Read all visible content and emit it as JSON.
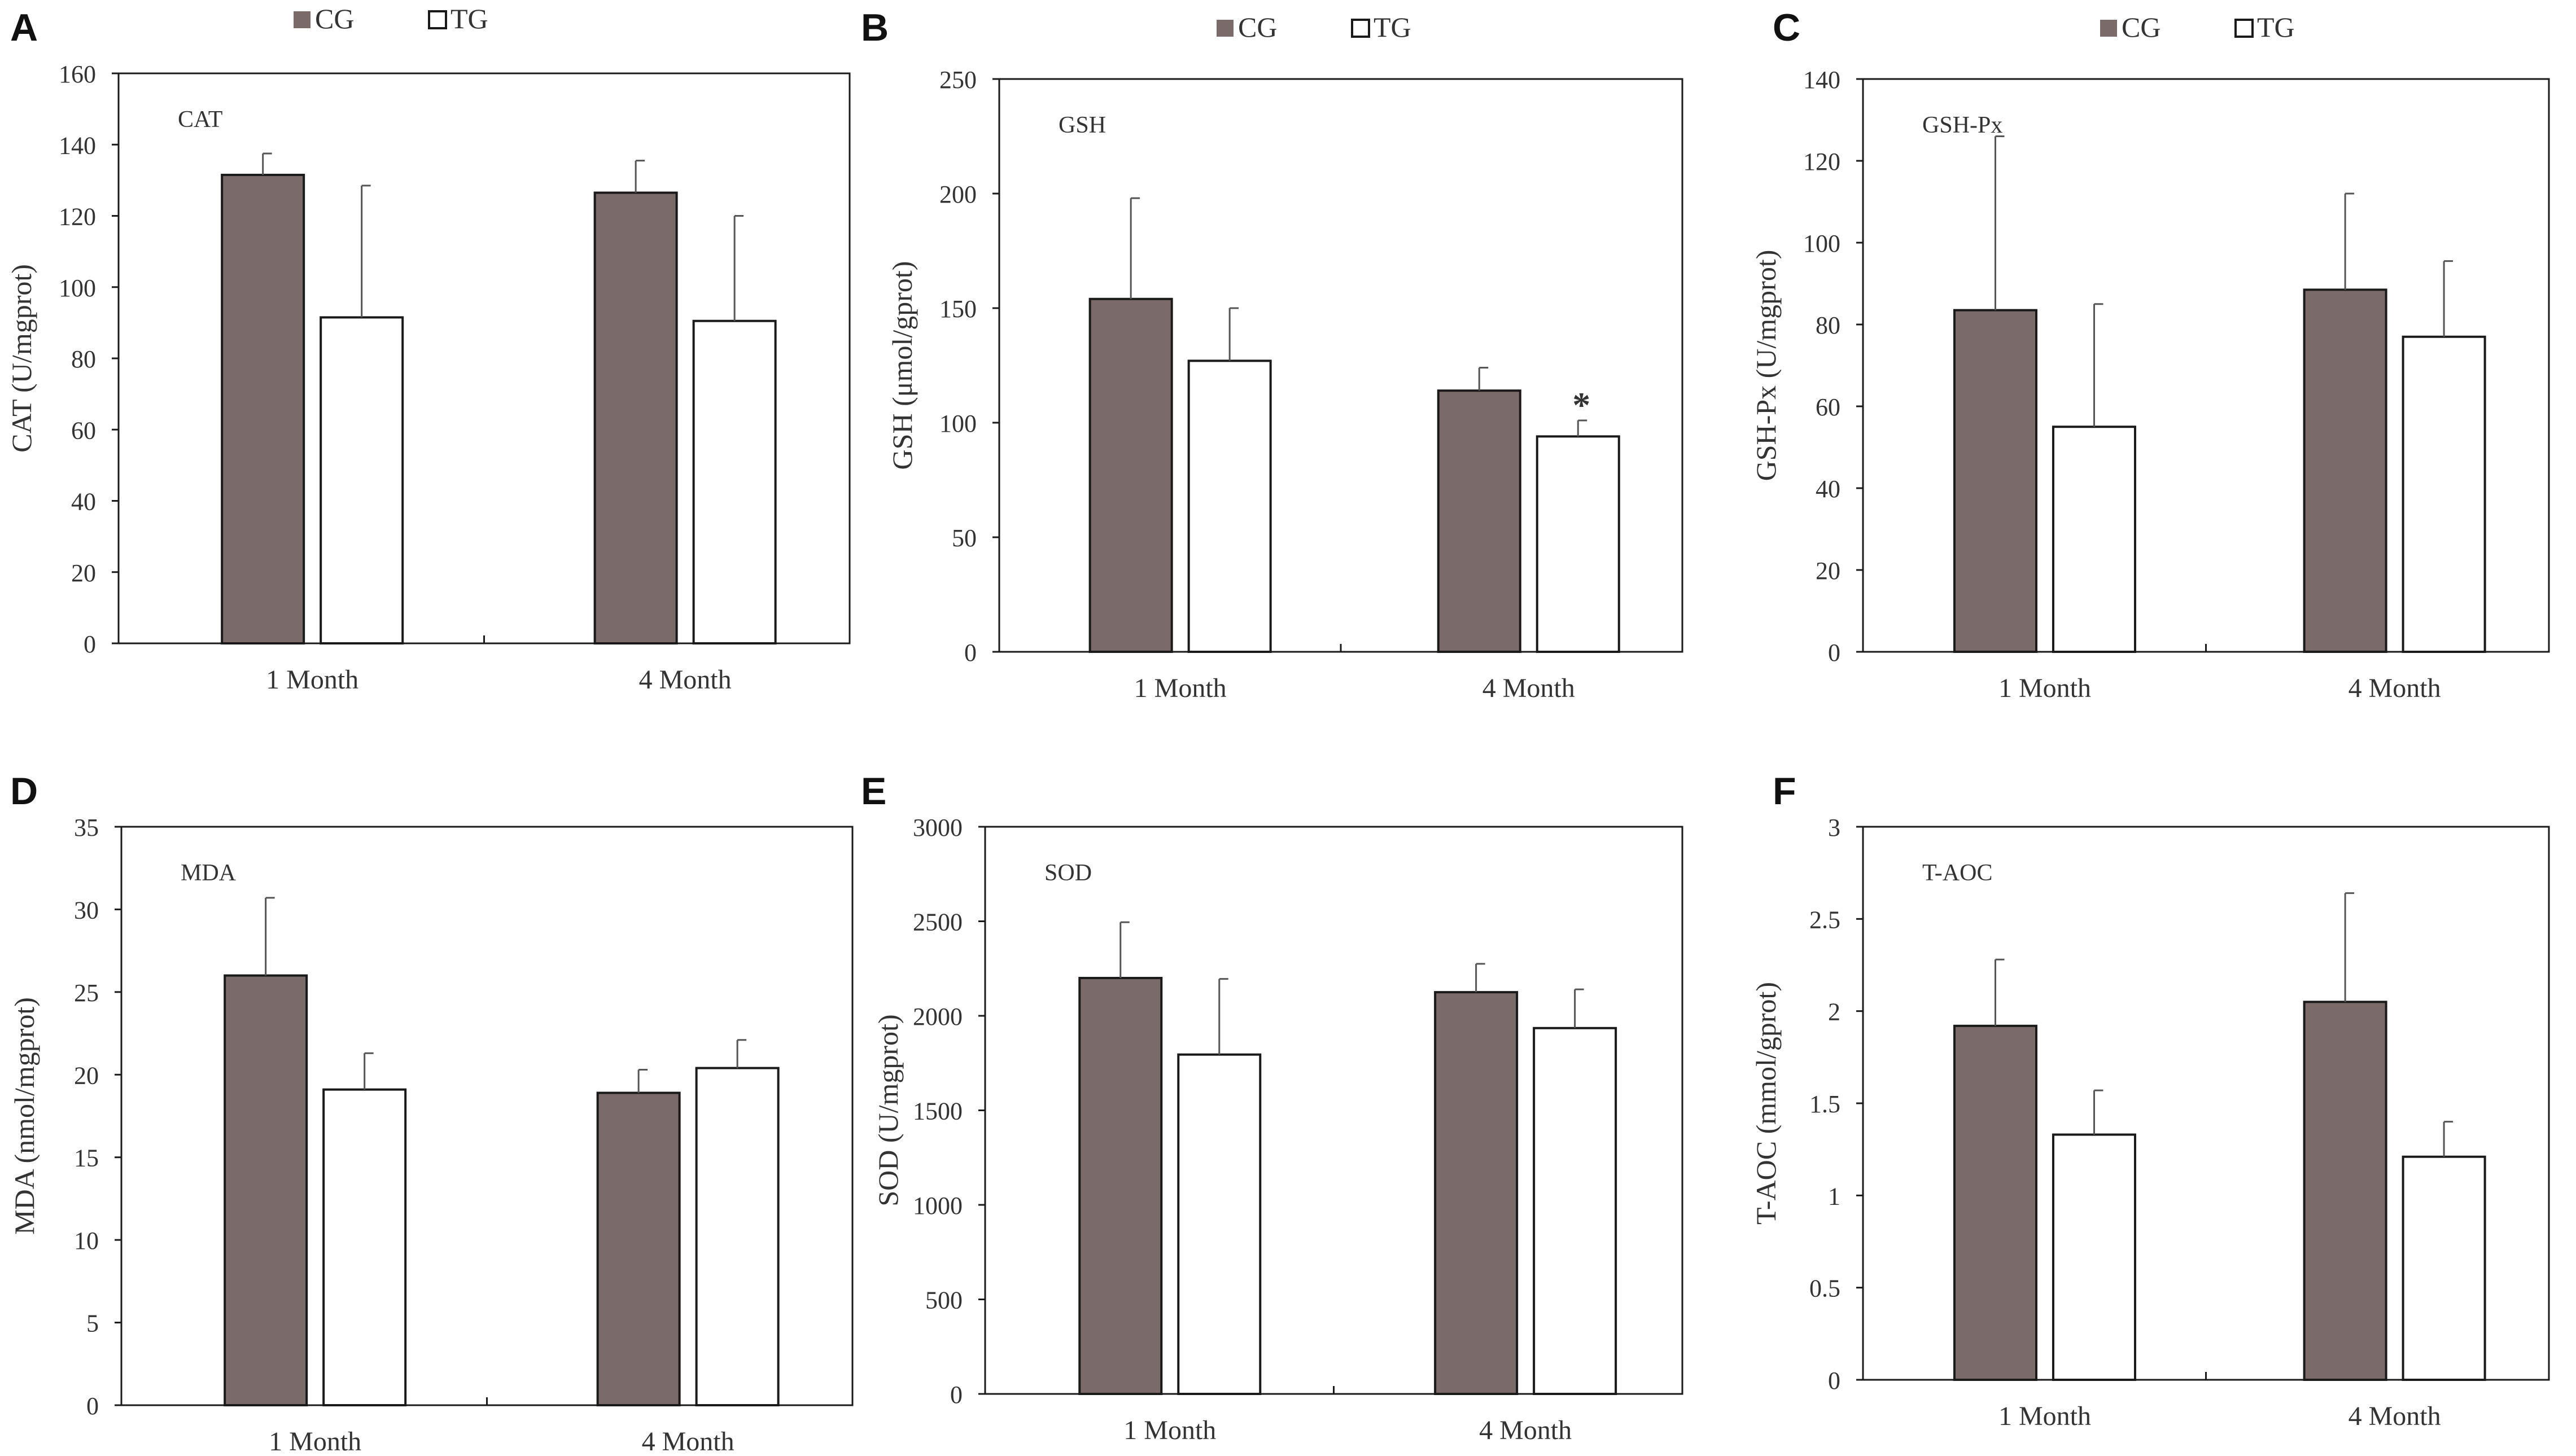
{
  "colors": {
    "cg": "#7a6a69",
    "tg": "#ffffff",
    "stroke": "#1a1a1a",
    "text": "#333333"
  },
  "legend": {
    "cg": "CG",
    "tg": "TG"
  },
  "chart_data": [
    {
      "letter": "A",
      "type": "bar",
      "title": "CAT",
      "ylabel": "CAT (U/mgprot)",
      "xlabel": "",
      "categories": [
        "1 Month",
        "4 Month"
      ],
      "ylim": [
        0,
        160
      ],
      "yticks": [
        "0",
        "20",
        "40",
        "60",
        "80",
        "100",
        "120",
        "140",
        "160"
      ],
      "series": [
        {
          "name": "CG",
          "values": [
            131.5,
            126.5
          ],
          "errors": [
            6.0,
            9.0
          ]
        },
        {
          "name": "TG",
          "values": [
            91.5,
            90.5
          ],
          "errors": [
            37.0,
            29.5
          ]
        }
      ],
      "annotations": []
    },
    {
      "letter": "B",
      "type": "bar",
      "title": "GSH",
      "ylabel": "GSH (μmol/gprot)",
      "xlabel": "",
      "categories": [
        "1 Month",
        "4 Month"
      ],
      "ylim": [
        0,
        250
      ],
      "yticks": [
        "0",
        "50",
        "100",
        "150",
        "200",
        "250"
      ],
      "series": [
        {
          "name": "CG",
          "values": [
            154,
            114
          ],
          "errors": [
            44,
            10
          ]
        },
        {
          "name": "TG",
          "values": [
            127,
            94
          ],
          "errors": [
            23,
            7
          ]
        }
      ],
      "annotations": [
        {
          "text": "*",
          "category_index": 1,
          "series_index": 1
        }
      ]
    },
    {
      "letter": "C",
      "type": "bar",
      "title": "GSH-Px",
      "ylabel": "GSH-Px (U/mgprot)",
      "xlabel": "",
      "categories": [
        "1 Month",
        "4 Month"
      ],
      "ylim": [
        0,
        140
      ],
      "yticks": [
        "0",
        "20",
        "40",
        "60",
        "80",
        "100",
        "120",
        "140"
      ],
      "series": [
        {
          "name": "CG",
          "values": [
            83.5,
            88.5
          ],
          "errors": [
            42.5,
            23.5
          ]
        },
        {
          "name": "TG",
          "values": [
            55,
            77
          ],
          "errors": [
            30,
            18.5
          ]
        }
      ],
      "annotations": []
    },
    {
      "letter": "D",
      "type": "bar",
      "title": "MDA",
      "ylabel": "MDA (nmol/mgprot)",
      "xlabel": "",
      "categories": [
        "1 Month",
        "4 Month"
      ],
      "ylim": [
        0,
        35
      ],
      "yticks": [
        "0",
        "5",
        "10",
        "15",
        "20",
        "25",
        "30",
        "35"
      ],
      "series": [
        {
          "name": "CG",
          "values": [
            26,
            18.9
          ],
          "errors": [
            4.7,
            1.4
          ]
        },
        {
          "name": "TG",
          "values": [
            19.1,
            20.4
          ],
          "errors": [
            2.2,
            1.7
          ]
        }
      ],
      "annotations": []
    },
    {
      "letter": "E",
      "type": "bar",
      "title": "SOD",
      "ylabel": "SOD (U/mgprot)",
      "xlabel": "",
      "categories": [
        "1 Month",
        "4 Month"
      ],
      "ylim": [
        0,
        3000
      ],
      "yticks": [
        "0",
        "500",
        "1000",
        "1500",
        "2000",
        "2500",
        "3000"
      ],
      "series": [
        {
          "name": "CG",
          "values": [
            2200,
            2125
          ],
          "errors": [
            295,
            150
          ]
        },
        {
          "name": "TG",
          "values": [
            1795,
            1935
          ],
          "errors": [
            400,
            205
          ]
        }
      ],
      "annotations": []
    },
    {
      "letter": "F",
      "type": "bar",
      "title": "T-AOC",
      "ylabel": "T-AOC (mmol/gprot)",
      "xlabel": "",
      "categories": [
        "1 Month",
        "4 Month"
      ],
      "ylim": [
        0,
        3
      ],
      "yticks": [
        "0",
        "0.5",
        "1",
        "1.5",
        "2",
        "2.5",
        "3"
      ],
      "series": [
        {
          "name": "CG",
          "values": [
            1.92,
            2.05
          ],
          "errors": [
            0.36,
            0.59
          ]
        },
        {
          "name": "TG",
          "values": [
            1.33,
            1.21
          ],
          "errors": [
            0.24,
            0.19
          ]
        }
      ],
      "annotations": []
    }
  ]
}
